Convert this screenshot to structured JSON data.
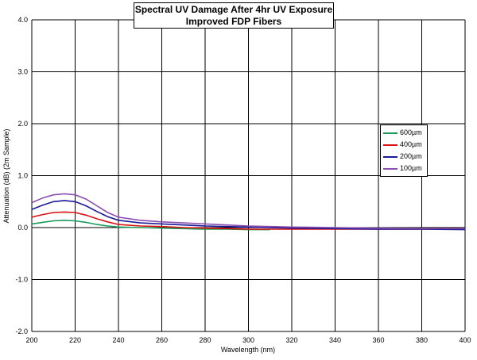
{
  "title_line1": "Spectral UV Damage After 4hr UV Exposure",
  "title_line2": "Improved FDP Fibers",
  "chart_data": {
    "type": "line",
    "title": "Spectral UV Damage After 4hr UV Exposure / Improved FDP Fibers",
    "xlabel": "Wavelength (nm)",
    "ylabel": "Attenuation (dB) (2m Sample)",
    "xlim": [
      200,
      400
    ],
    "ylim": [
      -2.0,
      4.0
    ],
    "xticks": [
      "200",
      "220",
      "240",
      "260",
      "280",
      "300",
      "320",
      "340",
      "360",
      "380",
      "400"
    ],
    "yticks": [
      "4.0",
      "3.0",
      "2.0",
      "1.0",
      "0.0",
      "-1.0",
      "-2.0"
    ],
    "grid": true,
    "legend_position": "right",
    "series": [
      {
        "name": "600µm",
        "color": "#1a9a5a",
        "x": [
          200,
          205,
          210,
          215,
          220,
          225,
          230,
          235,
          240,
          250,
          260,
          270,
          280,
          290,
          300,
          310
        ],
        "y": [
          0.07,
          0.1,
          0.13,
          0.14,
          0.13,
          0.1,
          0.06,
          0.03,
          0.01,
          0.0,
          -0.01,
          -0.02,
          -0.03,
          -0.03,
          -0.04,
          -0.04
        ]
      },
      {
        "name": "400µm",
        "color": "#dd1111",
        "x": [
          200,
          205,
          210,
          215,
          220,
          225,
          230,
          235,
          240,
          250,
          260,
          270,
          280,
          290,
          300,
          320,
          340,
          360,
          380,
          400
        ],
        "y": [
          0.2,
          0.25,
          0.29,
          0.3,
          0.29,
          0.24,
          0.17,
          0.11,
          0.06,
          0.03,
          0.02,
          0.0,
          -0.01,
          -0.02,
          -0.03,
          -0.03,
          -0.03,
          -0.03,
          -0.03,
          -0.03
        ]
      },
      {
        "name": "200µm",
        "color": "#1a1a99",
        "x": [
          200,
          205,
          210,
          215,
          220,
          225,
          230,
          235,
          240,
          250,
          260,
          270,
          280,
          290,
          300,
          320,
          340,
          360,
          380,
          400
        ],
        "y": [
          0.35,
          0.43,
          0.5,
          0.52,
          0.5,
          0.42,
          0.31,
          0.21,
          0.14,
          0.09,
          0.07,
          0.05,
          0.03,
          0.02,
          0.01,
          -0.01,
          -0.02,
          -0.03,
          -0.03,
          -0.04
        ]
      },
      {
        "name": "100µm",
        "color": "#8a4fb0",
        "x": [
          200,
          205,
          210,
          215,
          220,
          225,
          230,
          235,
          240,
          250,
          260,
          270,
          280,
          290,
          300,
          320,
          340,
          360,
          380,
          400
        ],
        "y": [
          0.48,
          0.57,
          0.63,
          0.65,
          0.63,
          0.55,
          0.42,
          0.29,
          0.2,
          0.14,
          0.11,
          0.09,
          0.07,
          0.05,
          0.03,
          0.01,
          0.0,
          -0.01,
          -0.02,
          -0.02
        ]
      }
    ]
  }
}
